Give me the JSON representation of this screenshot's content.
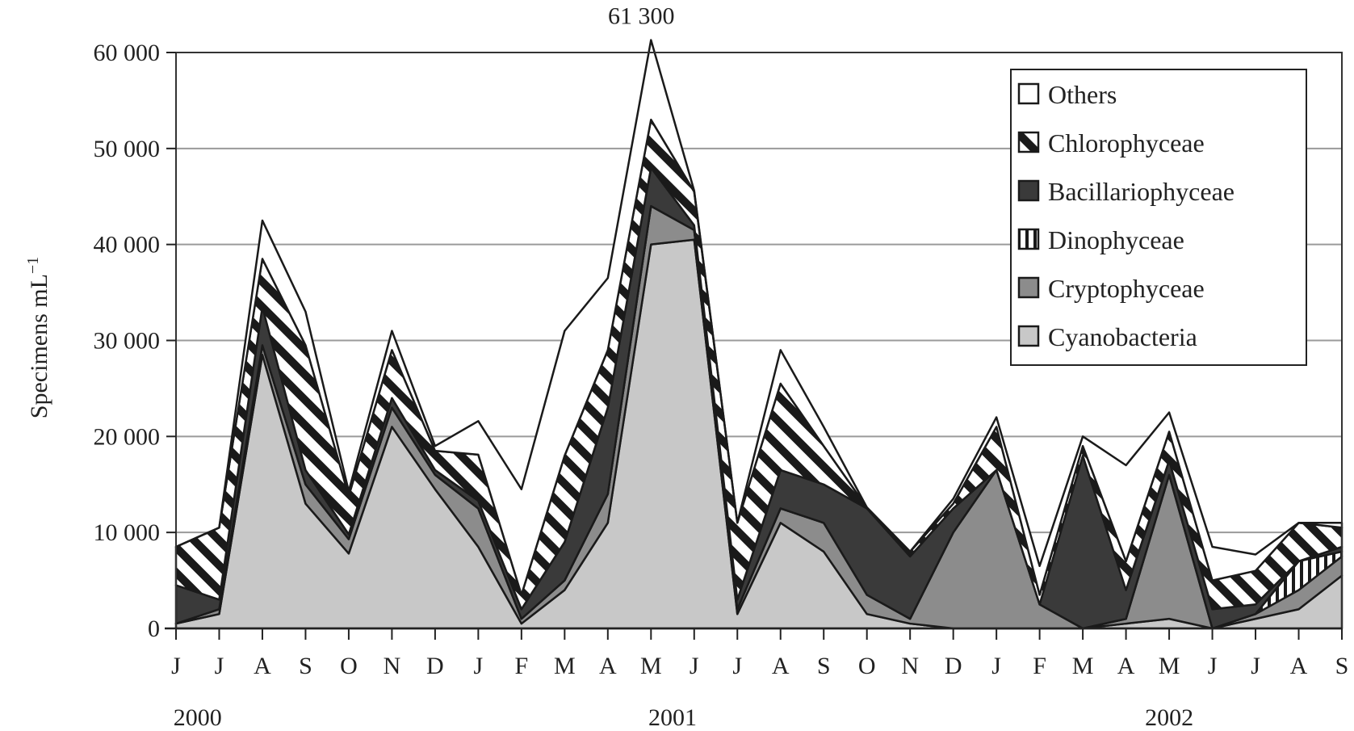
{
  "chart_data": {
    "type": "area",
    "stacked": true,
    "title": "",
    "xlabel": "",
    "ylabel": "Specimens mL",
    "ylabel_superscript": "−1",
    "ylim": [
      0,
      60000
    ],
    "yticks": [
      "0",
      "10 000",
      "20 000",
      "30 000",
      "40 000",
      "50 000",
      "60 000"
    ],
    "yticks_values": [
      0,
      10000,
      20000,
      30000,
      40000,
      50000,
      60000
    ],
    "grid": true,
    "legend_position": "top-right",
    "categories": [
      "J",
      "J",
      "A",
      "S",
      "O",
      "N",
      "D",
      "J",
      "F",
      "M",
      "A",
      "M",
      "J",
      "J",
      "A",
      "S",
      "O",
      "N",
      "D",
      "J",
      "F",
      "M",
      "A",
      "M",
      "J",
      "J",
      "A",
      "S"
    ],
    "years": [
      {
        "label": "2000",
        "start_index": 0,
        "end_index": 1
      },
      {
        "label": "2001",
        "start_index": 11,
        "end_index": 12
      },
      {
        "label": "2002",
        "start_index": 22,
        "end_index": 24
      }
    ],
    "annotations": [
      {
        "text": "61 300",
        "index": 11,
        "value": 61300
      }
    ],
    "series": [
      {
        "name": "Cyanobacteria",
        "fill": "#c8c8c8",
        "pattern": "solid",
        "values": [
          500,
          1500,
          28500,
          13000,
          7800,
          21000,
          14500,
          8500,
          500,
          4000,
          11000,
          40000,
          40500,
          1500,
          11000,
          8000,
          1500,
          500,
          0,
          0,
          0,
          0,
          500,
          1000,
          0,
          1000,
          2000,
          5500
        ]
      },
      {
        "name": "Cryptophyceae",
        "fill": "#8c8c8c",
        "pattern": "solid",
        "values": [
          0,
          500,
          1000,
          2000,
          1500,
          2000,
          1500,
          4000,
          500,
          1000,
          3000,
          4000,
          1000,
          500,
          1500,
          3000,
          2000,
          500,
          10000,
          16500,
          2500,
          0,
          500,
          15000,
          0,
          500,
          2000,
          2000
        ]
      },
      {
        "name": "Dinophyceae",
        "fill": "#ffffff",
        "pattern": "vertical",
        "values": [
          0,
          0,
          0,
          0,
          0,
          0,
          0,
          0,
          0,
          0,
          0,
          0,
          0,
          0,
          0,
          0,
          0,
          0,
          0,
          0,
          0,
          0,
          0,
          0,
          0,
          0,
          3000,
          500
        ]
      },
      {
        "name": "Bacillariophyceae",
        "fill": "#3a3a3a",
        "pattern": "solid",
        "values": [
          4000,
          1000,
          4000,
          1500,
          500,
          1000,
          500,
          800,
          1000,
          4000,
          9000,
          4000,
          500,
          1000,
          4000,
          4000,
          9000,
          6500,
          2500,
          0,
          0,
          18000,
          3000,
          1500,
          2000,
          1000,
          0,
          500
        ]
      },
      {
        "name": "Chlorophyceae",
        "fill": "#ffffff",
        "pattern": "diagonal",
        "values": [
          4000,
          7500,
          5000,
          13000,
          4000,
          5000,
          2000,
          4800,
          1500,
          9000,
          6000,
          5000,
          3500,
          8000,
          9000,
          4000,
          100,
          500,
          500,
          4500,
          1000,
          1000,
          3000,
          3000,
          3000,
          3500,
          4000,
          2000
        ]
      },
      {
        "name": "Others",
        "fill": "#ffffff",
        "pattern": "solid",
        "values": [
          0,
          0,
          4000,
          3500,
          500,
          2000,
          500,
          3500,
          11000,
          13000,
          7500,
          8300,
          100,
          0,
          3500,
          2000,
          0,
          0,
          500,
          1000,
          3000,
          1000,
          10000,
          2000,
          3500,
          1700,
          0,
          500
        ]
      }
    ],
    "legend_order": [
      "Others",
      "Chlorophyceae",
      "Bacillariophyceae",
      "Dinophyceae",
      "Cryptophyceae",
      "Cyanobacteria"
    ]
  }
}
